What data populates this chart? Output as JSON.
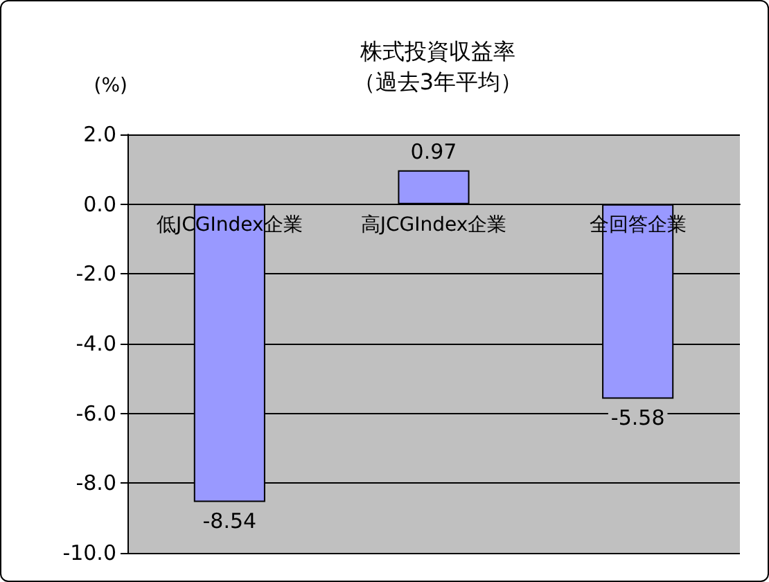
{
  "chart_data": {
    "type": "bar",
    "title": "株式投資収益率",
    "subtitle": "（過去3年平均）",
    "ylabel": "(%)",
    "categories": [
      "低JCGIndex企業",
      "高JCGIndex企業",
      "全回答企業"
    ],
    "values": [
      -8.54,
      0.97,
      -5.58
    ],
    "color": "#9999ff",
    "data_labels": true,
    "ylim": [
      -10,
      2
    ],
    "yticks": [
      {
        "value": -10,
        "label": "-10.0"
      },
      {
        "value": -8,
        "label": "-8.0"
      },
      {
        "value": -6,
        "label": "-6.0"
      },
      {
        "value": -4,
        "label": "-4.0"
      },
      {
        "value": -2,
        "label": "-2.0"
      },
      {
        "value": 0,
        "label": "0.0"
      },
      {
        "value": 2,
        "label": "2.0"
      }
    ],
    "grid": "y"
  }
}
